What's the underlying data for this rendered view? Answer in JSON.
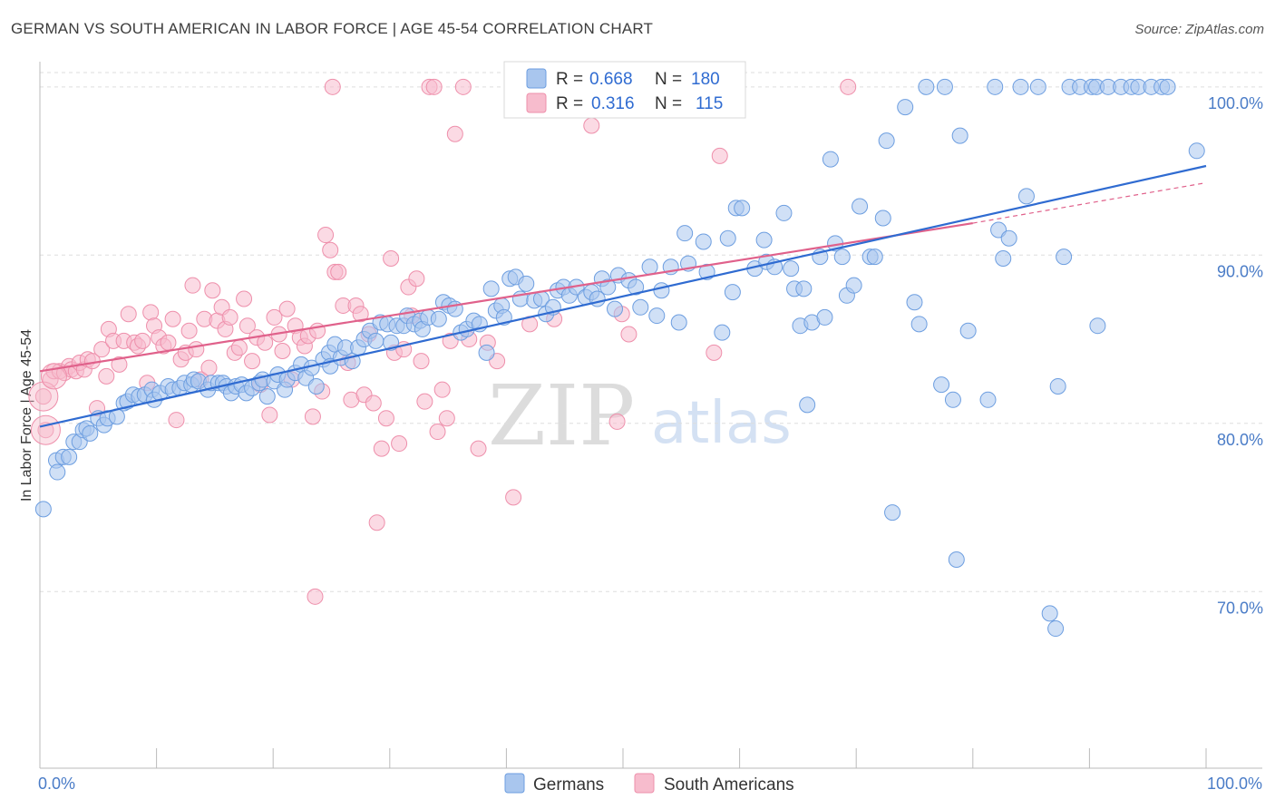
{
  "header": {
    "title": "GERMAN VS SOUTH AMERICAN IN LABOR FORCE | AGE 45-54 CORRELATION CHART",
    "source": "Source: ZipAtlas.com"
  },
  "watermark": {
    "zip": "ZIP",
    "atlas": "atlas"
  },
  "legend": {
    "german": {
      "r_label": "R =",
      "r_value": "0.668",
      "n_label": "N =",
      "n_value": "180"
    },
    "south_american": {
      "r_label": "R =",
      "r_value": "0.316",
      "n_label": "N =",
      "n_value": "115"
    }
  },
  "bottom_legend": {
    "german": "Germans",
    "south_american": "South Americans"
  },
  "colors": {
    "german_fill": "#a9c6ee",
    "german_stroke": "#6d9ee0",
    "german_line": "#2f6bd1",
    "sa_fill": "#f7bccd",
    "sa_stroke": "#ee8fab",
    "sa_line": "#e0618b",
    "axis_text": "#4a7cc7",
    "grid": "#dddddd"
  },
  "chart_data": {
    "type": "scatter",
    "title": "GERMAN VS SOUTH AMERICAN IN LABOR FORCE | AGE 45-54 CORRELATION CHART",
    "xlabel": "",
    "ylabel": "In Labor Force | Age 45-54",
    "xlim": [
      0,
      100
    ],
    "ylim": [
      59.5,
      101.5
    ],
    "x_tick_labels": [
      "0.0%",
      "100.0%"
    ],
    "y_ticks": [
      70,
      80,
      90,
      100
    ],
    "y_tick_labels": [
      "70.0%",
      "80.0%",
      "90.0%",
      "100.0%"
    ],
    "grid": true,
    "legend_position": "top-center",
    "series": [
      {
        "name": "Germans",
        "r": 0.668,
        "n": 180,
        "trend": {
          "x": [
            0,
            100
          ],
          "y": [
            79.8,
            95.3
          ]
        },
        "points": [
          [
            0.3,
            74.9
          ],
          [
            1.4,
            77.8
          ],
          [
            1.5,
            77.1
          ],
          [
            2,
            78
          ],
          [
            2.5,
            78
          ],
          [
            2.9,
            78.9
          ],
          [
            3.4,
            78.9
          ],
          [
            3.7,
            79.6
          ],
          [
            4,
            79.7
          ],
          [
            4.3,
            79.4
          ],
          [
            5,
            80.3
          ],
          [
            5.5,
            79.9
          ],
          [
            5.8,
            80.3
          ],
          [
            6.6,
            80.4
          ],
          [
            7.2,
            81.2
          ],
          [
            7.5,
            81.3
          ],
          [
            8,
            81.7
          ],
          [
            8.5,
            81.6
          ],
          [
            9,
            81.7
          ],
          [
            9.6,
            82
          ],
          [
            9.8,
            81.4
          ],
          [
            10.3,
            81.8
          ],
          [
            11,
            82.2
          ],
          [
            11.4,
            82
          ],
          [
            12,
            82.1
          ],
          [
            12.4,
            82.4
          ],
          [
            13,
            82.3
          ],
          [
            13.2,
            82.6
          ],
          [
            13.6,
            82.5
          ],
          [
            14.4,
            82
          ],
          [
            14.7,
            82.4
          ],
          [
            15.3,
            82.4
          ],
          [
            15.7,
            82.4
          ],
          [
            16,
            82.2
          ],
          [
            16.4,
            81.8
          ],
          [
            16.8,
            82.2
          ],
          [
            17.3,
            82.3
          ],
          [
            17.7,
            81.8
          ],
          [
            18.2,
            82.1
          ],
          [
            18.8,
            82.4
          ],
          [
            19.1,
            82.6
          ],
          [
            19.5,
            81.6
          ],
          [
            20.1,
            82.5
          ],
          [
            20.4,
            82.9
          ],
          [
            21,
            82
          ],
          [
            21.2,
            82.6
          ],
          [
            21.9,
            83
          ],
          [
            22.4,
            83.5
          ],
          [
            22.8,
            82.7
          ],
          [
            23.3,
            83.3
          ],
          [
            23.7,
            82.2
          ],
          [
            24.3,
            83.8
          ],
          [
            24.8,
            84.2
          ],
          [
            24.9,
            83.4
          ],
          [
            25.3,
            84.7
          ],
          [
            25.8,
            83.9
          ],
          [
            26.2,
            84.5
          ],
          [
            26.8,
            83.7
          ],
          [
            27.3,
            84.5
          ],
          [
            27.8,
            85
          ],
          [
            28.3,
            85.5
          ],
          [
            28.8,
            84.9
          ],
          [
            29.2,
            86
          ],
          [
            29.8,
            85.9
          ],
          [
            30.1,
            84.8
          ],
          [
            30.6,
            85.8
          ],
          [
            31.2,
            85.8
          ],
          [
            31.5,
            86.4
          ],
          [
            32.1,
            85.9
          ],
          [
            32.6,
            86.1
          ],
          [
            32.8,
            85.6
          ],
          [
            33.3,
            86.3
          ],
          [
            34.2,
            86.2
          ],
          [
            34.6,
            87.2
          ],
          [
            35.1,
            87
          ],
          [
            35.6,
            86.8
          ],
          [
            36.1,
            85.4
          ],
          [
            36.6,
            85.6
          ],
          [
            37.2,
            86.1
          ],
          [
            37.7,
            85.9
          ],
          [
            38.3,
            84.2
          ],
          [
            38.7,
            88
          ],
          [
            39.1,
            86.7
          ],
          [
            39.6,
            87
          ],
          [
            39.8,
            86.3
          ],
          [
            40.3,
            88.6
          ],
          [
            40.8,
            88.7
          ],
          [
            41.2,
            87.4
          ],
          [
            41.7,
            88.3
          ],
          [
            42.4,
            87.3
          ],
          [
            43,
            87.4
          ],
          [
            43.4,
            86.5
          ],
          [
            44,
            86.9
          ],
          [
            44.4,
            87.9
          ],
          [
            44.9,
            88.1
          ],
          [
            45.4,
            87.6
          ],
          [
            46,
            88.1
          ],
          [
            46.8,
            87.5
          ],
          [
            47.3,
            87.8
          ],
          [
            47.8,
            87.4
          ],
          [
            48.2,
            88.6
          ],
          [
            48.7,
            88.1
          ],
          [
            49.3,
            86.8
          ],
          [
            49.6,
            88.8
          ],
          [
            50.5,
            88.5
          ],
          [
            51.1,
            88.1
          ],
          [
            51.5,
            86.9
          ],
          [
            52.3,
            89.3
          ],
          [
            52.9,
            86.4
          ],
          [
            53.3,
            87.9
          ],
          [
            54.1,
            89.3
          ],
          [
            54.8,
            86
          ],
          [
            55.3,
            91.3
          ],
          [
            55.6,
            89.5
          ],
          [
            56.9,
            90.8
          ],
          [
            57.2,
            89
          ],
          [
            58.5,
            85.4
          ],
          [
            59,
            91
          ],
          [
            59.4,
            87.8
          ],
          [
            59.7,
            92.8
          ],
          [
            60.2,
            92.8
          ],
          [
            61.3,
            89.2
          ],
          [
            62.1,
            90.9
          ],
          [
            62.3,
            89.6
          ],
          [
            63,
            89.3
          ],
          [
            63.8,
            92.5
          ],
          [
            64.4,
            89.2
          ],
          [
            64.7,
            88
          ],
          [
            65.2,
            85.8
          ],
          [
            65.5,
            88
          ],
          [
            65.8,
            81.1
          ],
          [
            66.2,
            86
          ],
          [
            66.9,
            89.9
          ],
          [
            67.3,
            86.3
          ],
          [
            67.8,
            95.7
          ],
          [
            68.2,
            90.7
          ],
          [
            68.8,
            89.9
          ],
          [
            69.2,
            87.6
          ],
          [
            69.8,
            88.2
          ],
          [
            70.3,
            92.9
          ],
          [
            71.2,
            89.9
          ],
          [
            71.6,
            89.9
          ],
          [
            72.3,
            92.2
          ],
          [
            72.6,
            96.8
          ],
          [
            73.1,
            74.7
          ],
          [
            74.2,
            98.8
          ],
          [
            75,
            87.2
          ],
          [
            75.4,
            85.9
          ],
          [
            76,
            100
          ],
          [
            77.3,
            82.3
          ],
          [
            77.6,
            100
          ],
          [
            78.3,
            81.4
          ],
          [
            78.6,
            71.9
          ],
          [
            78.9,
            97.1
          ],
          [
            79.6,
            85.5
          ],
          [
            81.3,
            81.4
          ],
          [
            81.9,
            100
          ],
          [
            82.2,
            91.5
          ],
          [
            82.6,
            89.8
          ],
          [
            83.1,
            91
          ],
          [
            84.1,
            100
          ],
          [
            84.6,
            93.5
          ],
          [
            85.6,
            100
          ],
          [
            86.6,
            68.7
          ],
          [
            87.1,
            67.8
          ],
          [
            87.3,
            82.2
          ],
          [
            87.8,
            89.9
          ],
          [
            88.3,
            100
          ],
          [
            89.2,
            100
          ],
          [
            90.2,
            100
          ],
          [
            90.7,
            85.8
          ],
          [
            90.6,
            100
          ],
          [
            91.6,
            100
          ],
          [
            92.7,
            100
          ],
          [
            93.6,
            100
          ],
          [
            94.2,
            100
          ],
          [
            95.3,
            100
          ],
          [
            96.2,
            100
          ],
          [
            96.7,
            100
          ],
          [
            99.2,
            96.2
          ]
        ]
      },
      {
        "name": "South Americans",
        "r": 0.316,
        "n": 115,
        "trend": {
          "x": [
            0,
            80
          ],
          "y": [
            83.1,
            91.9
          ]
        },
        "trend_extension": {
          "x": [
            80,
            100
          ],
          "y": [
            91.9,
            94.3
          ]
        },
        "points": [
          [
            0.3,
            81.6
          ],
          [
            0.5,
            79.6
          ],
          [
            0.9,
            82.6
          ],
          [
            1.2,
            83.1
          ],
          [
            1.7,
            83.1
          ],
          [
            2.1,
            83
          ],
          [
            2.5,
            83.4
          ],
          [
            2.7,
            83.2
          ],
          [
            3.1,
            83.1
          ],
          [
            3.4,
            83.6
          ],
          [
            3.8,
            83.2
          ],
          [
            4.1,
            83.8
          ],
          [
            4.5,
            83.7
          ],
          [
            4.9,
            80.9
          ],
          [
            5.3,
            84.4
          ],
          [
            5.7,
            82.8
          ],
          [
            5.9,
            85.6
          ],
          [
            6.3,
            84.9
          ],
          [
            6.8,
            83.5
          ],
          [
            7.2,
            84.9
          ],
          [
            7.6,
            86.5
          ],
          [
            8.1,
            84.8
          ],
          [
            8.4,
            84.6
          ],
          [
            8.8,
            84.9
          ],
          [
            9.2,
            82.4
          ],
          [
            9.5,
            86.6
          ],
          [
            9.8,
            85.8
          ],
          [
            10.2,
            85.1
          ],
          [
            10.6,
            84.6
          ],
          [
            11,
            84.8
          ],
          [
            11.4,
            86.2
          ],
          [
            11.7,
            80.2
          ],
          [
            12.1,
            83.8
          ],
          [
            12.5,
            84.2
          ],
          [
            12.8,
            85.5
          ],
          [
            13.1,
            88.2
          ],
          [
            13.4,
            84.4
          ],
          [
            13.8,
            82.6
          ],
          [
            14.1,
            86.2
          ],
          [
            14.5,
            83.3
          ],
          [
            14.8,
            87.9
          ],
          [
            15.2,
            86.1
          ],
          [
            15.6,
            86.9
          ],
          [
            15.9,
            85.6
          ],
          [
            16.3,
            86.3
          ],
          [
            16.7,
            84.2
          ],
          [
            17.1,
            84.5
          ],
          [
            17.5,
            87.4
          ],
          [
            17.8,
            85.8
          ],
          [
            18.2,
            83.7
          ],
          [
            18.6,
            85.1
          ],
          [
            18.9,
            82.3
          ],
          [
            19.3,
            84.8
          ],
          [
            19.7,
            80.5
          ],
          [
            20.1,
            86.3
          ],
          [
            20.5,
            85.3
          ],
          [
            20.8,
            84.3
          ],
          [
            21.2,
            86.8
          ],
          [
            21.6,
            82.6
          ],
          [
            21.9,
            85.8
          ],
          [
            22.3,
            85.1
          ],
          [
            22.7,
            84.6
          ],
          [
            23,
            85.2
          ],
          [
            23.4,
            80.4
          ],
          [
            23.8,
            85.5
          ],
          [
            24.2,
            81.9
          ],
          [
            24.5,
            91.2
          ],
          [
            24.9,
            90.3
          ],
          [
            25.3,
            89
          ],
          [
            25.6,
            89
          ],
          [
            26,
            87
          ],
          [
            26.4,
            83.6
          ],
          [
            26.7,
            81.4
          ],
          [
            27.1,
            87
          ],
          [
            27.5,
            86.5
          ],
          [
            27.8,
            81.7
          ],
          [
            28.2,
            85.3
          ],
          [
            28.6,
            81.2
          ],
          [
            28.9,
            74.1
          ],
          [
            29.3,
            78.5
          ],
          [
            29.7,
            80.3
          ],
          [
            30.1,
            89.8
          ],
          [
            30.4,
            84.2
          ],
          [
            30.8,
            78.8
          ],
          [
            31.2,
            84.4
          ],
          [
            31.6,
            88.1
          ],
          [
            31.9,
            86.4
          ],
          [
            32.3,
            88.6
          ],
          [
            32.7,
            83.7
          ],
          [
            33,
            81.3
          ],
          [
            33.4,
            100
          ],
          [
            33.8,
            100
          ],
          [
            34.1,
            79.5
          ],
          [
            34.5,
            82
          ],
          [
            34.9,
            80.3
          ],
          [
            35.2,
            84.9
          ],
          [
            35.6,
            97.2
          ],
          [
            36.3,
            100
          ],
          [
            36.8,
            85
          ],
          [
            37.6,
            78.5
          ],
          [
            38.4,
            84.8
          ],
          [
            39.2,
            83.7
          ],
          [
            40.6,
            75.6
          ],
          [
            42,
            85.9
          ],
          [
            44.1,
            86.2
          ],
          [
            47.3,
            97.7
          ],
          [
            47.9,
            100
          ],
          [
            49.5,
            80.1
          ],
          [
            49.9,
            86.5
          ],
          [
            50.5,
            85.3
          ],
          [
            57.8,
            84.2
          ],
          [
            58.3,
            95.9
          ],
          [
            69.3,
            100
          ],
          [
            23.6,
            69.7
          ],
          [
            25.1,
            100
          ]
        ]
      }
    ]
  }
}
